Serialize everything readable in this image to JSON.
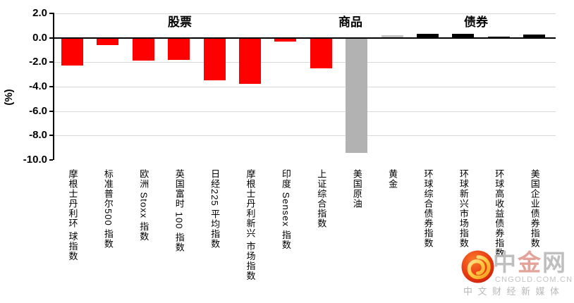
{
  "chart_data": {
    "type": "bar",
    "title": "",
    "ylabel": "(%)",
    "ylim": [
      -10.0,
      2.0
    ],
    "ytick_step": 2.0,
    "yticks": [
      "2.0",
      "0.0",
      "-2.0",
      "-4.0",
      "-6.0",
      "-8.0",
      "-10.0"
    ],
    "grid": true,
    "legend": "none",
    "groups": [
      {
        "label": "股票",
        "from": 0,
        "to": 7
      },
      {
        "label": "商品",
        "from": 8,
        "to": 9
      },
      {
        "label": "债券",
        "from": 10,
        "to": 13
      }
    ],
    "bars": [
      {
        "label": "摩根士丹利环 球指数",
        "value": -2.3,
        "color": "#fe0000"
      },
      {
        "label": "标准普尔500 指数",
        "value": -0.6,
        "color": "#fe0000"
      },
      {
        "label": "欧洲 Stoxx 指数",
        "value": -1.9,
        "color": "#fe0000"
      },
      {
        "label": "英国富时 100 指数",
        "value": -1.8,
        "color": "#fe0000"
      },
      {
        "label": "日经225 平均指数",
        "value": -3.5,
        "color": "#fe0000"
      },
      {
        "label": "摩根士丹利新兴 市场指数",
        "value": -3.8,
        "color": "#fe0000"
      },
      {
        "label": "印度 Sensex 指数",
        "value": -0.3,
        "color": "#fe0000"
      },
      {
        "label": "上证综合指数",
        "value": -2.5,
        "color": "#fe0000"
      },
      {
        "label": "美国原油",
        "value": -9.4,
        "color": "#b2b2b2"
      },
      {
        "label": "黄金",
        "value": 0.2,
        "color": "#c3c3c3"
      },
      {
        "label": "环球综合债券指数",
        "value": 0.3,
        "color": "#000000"
      },
      {
        "label": "环球新兴市场指数",
        "value": 0.3,
        "color": "#000000"
      },
      {
        "label": "环球高收益债券指数",
        "value": 0.1,
        "color": "#000000"
      },
      {
        "label": "美国企业债券指数",
        "value": 0.25,
        "color": "#000000"
      }
    ],
    "colors": {
      "stocks_bar": "#fe0000",
      "oil_bar": "#b2b2b2",
      "gold_bar": "#c3c3c3",
      "bonds_bar": "#000000",
      "gridline": "#d8d8d8",
      "axis": "#000000"
    }
  },
  "watermark": {
    "brand_chars": [
      "中",
      "金",
      "网"
    ],
    "domain": "CNGOLD.COM.CN",
    "tagline": "中文财经新媒体",
    "icon": "cloud-swirl-badge",
    "colors": {
      "badge_red": "#e23a12",
      "swirl_gold": "#ffc93e",
      "text_gray": "#b9b9b9"
    }
  }
}
